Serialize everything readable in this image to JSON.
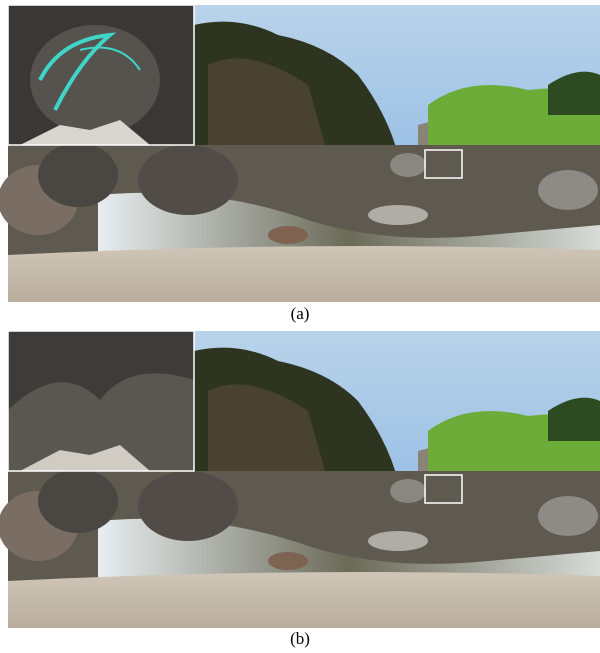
{
  "figures": [
    {
      "caption": "(a)"
    },
    {
      "caption": "(b)"
    }
  ]
}
